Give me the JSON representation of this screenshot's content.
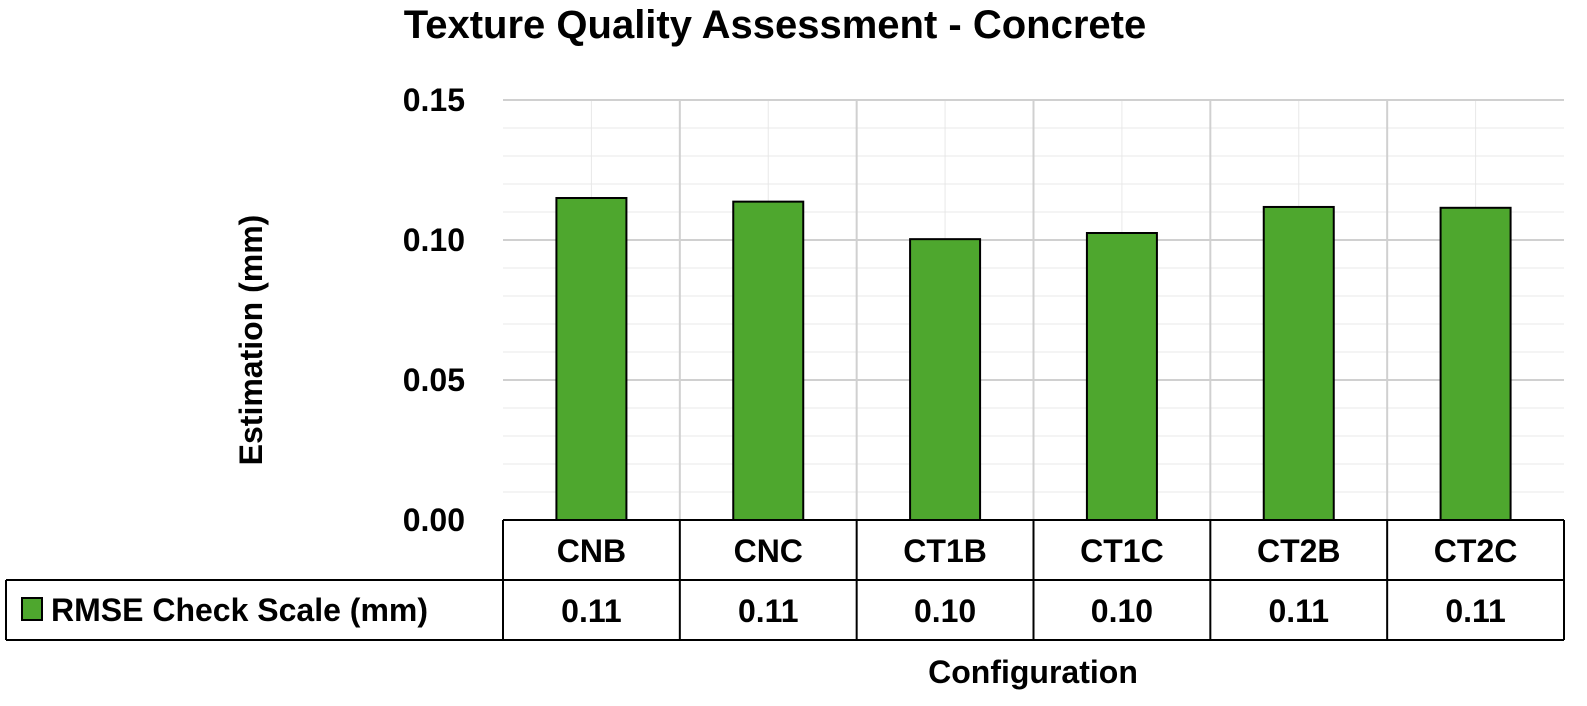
{
  "chart_data": {
    "type": "bar",
    "title": "Texture Quality Assessment - Concrete",
    "xlabel": "Configuration",
    "ylabel": "Estimation (mm)",
    "categories": [
      "CNB",
      "CNC",
      "CT1B",
      "CT1C",
      "CT2B",
      "CT2C"
    ],
    "series": [
      {
        "name": "RMSE Check Scale (mm)",
        "values": [
          0.115,
          0.1137,
          0.1003,
          0.1025,
          0.1118,
          0.1115
        ],
        "table_labels": [
          "0.11",
          "0.11",
          "0.10",
          "0.10",
          "0.11",
          "0.11"
        ]
      }
    ],
    "ylim": [
      0,
      0.15
    ],
    "yticks": [
      0,
      0.05,
      0.1,
      0.15
    ],
    "ytick_labels": [
      "0.00",
      "0.05",
      "0.10",
      "0.15"
    ],
    "grid": true,
    "legend": "data-table",
    "colors": {
      "bar": "#4ea72e",
      "bar_edge": "#000000",
      "major_grid": "#d0d0d0",
      "minor_grid": "#e8e8e8"
    }
  }
}
